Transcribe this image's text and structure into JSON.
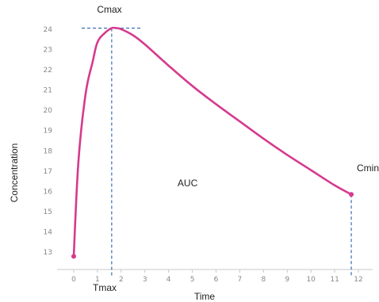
{
  "chart_data": {
    "type": "line",
    "title": "",
    "xlabel": "Time",
    "ylabel": "Concentration",
    "xlim": [
      -0.3,
      12.3
    ],
    "ylim": [
      12.5,
      24.5
    ],
    "x_ticks": [
      0,
      1,
      2,
      3,
      4,
      5,
      6,
      7,
      8,
      9,
      10,
      11,
      12
    ],
    "x_tick_labels": [
      "0",
      "1",
      "2",
      "3",
      "4",
      "5",
      "6",
      "7",
      "8",
      "9",
      "10",
      "11",
      "12"
    ],
    "y_ticks": [
      13,
      14,
      15,
      16,
      17,
      18,
      19,
      20,
      21,
      22,
      23,
      24
    ],
    "y_tick_labels": [
      "13",
      "14",
      "15",
      "16",
      "17",
      "18",
      "19",
      "20",
      "21",
      "22",
      "23",
      "24"
    ],
    "grid": false,
    "series": [
      {
        "name": "",
        "color": "#d63a8e",
        "x": [
          0,
          0.2,
          0.5,
          0.8,
          1.0,
          1.3,
          1.6,
          1.8,
          2.0,
          2.5,
          3.0,
          4.0,
          5.0,
          6.0,
          7.0,
          8.0,
          9.0,
          10.0,
          11.0,
          11.7
        ],
        "y": [
          12.8,
          17.5,
          20.8,
          22.4,
          23.35,
          23.8,
          24.05,
          24.05,
          24.0,
          23.7,
          23.25,
          22.2,
          21.2,
          20.3,
          19.45,
          18.6,
          17.8,
          17.05,
          16.3,
          15.85
        ]
      }
    ],
    "markers": [
      {
        "x": 0,
        "y": 12.8
      },
      {
        "x": 11.7,
        "y": 15.85
      }
    ],
    "annotations": {
      "cmax": {
        "label": "Cmax",
        "x": 1.6,
        "y": 24.05
      },
      "tmax": {
        "label": "Tmax",
        "x": 1.6
      },
      "cmin": {
        "label": "Cmin",
        "x": 11.7,
        "y": 15.85
      },
      "auc": {
        "label": "AUC",
        "x": 4.8,
        "y": 16.4
      }
    },
    "colors": {
      "curve": "#d63a8e",
      "reference_line": "#3a6db5",
      "axis": "#c8c8c8",
      "tick_label": "#888888",
      "text": "#222222"
    }
  }
}
